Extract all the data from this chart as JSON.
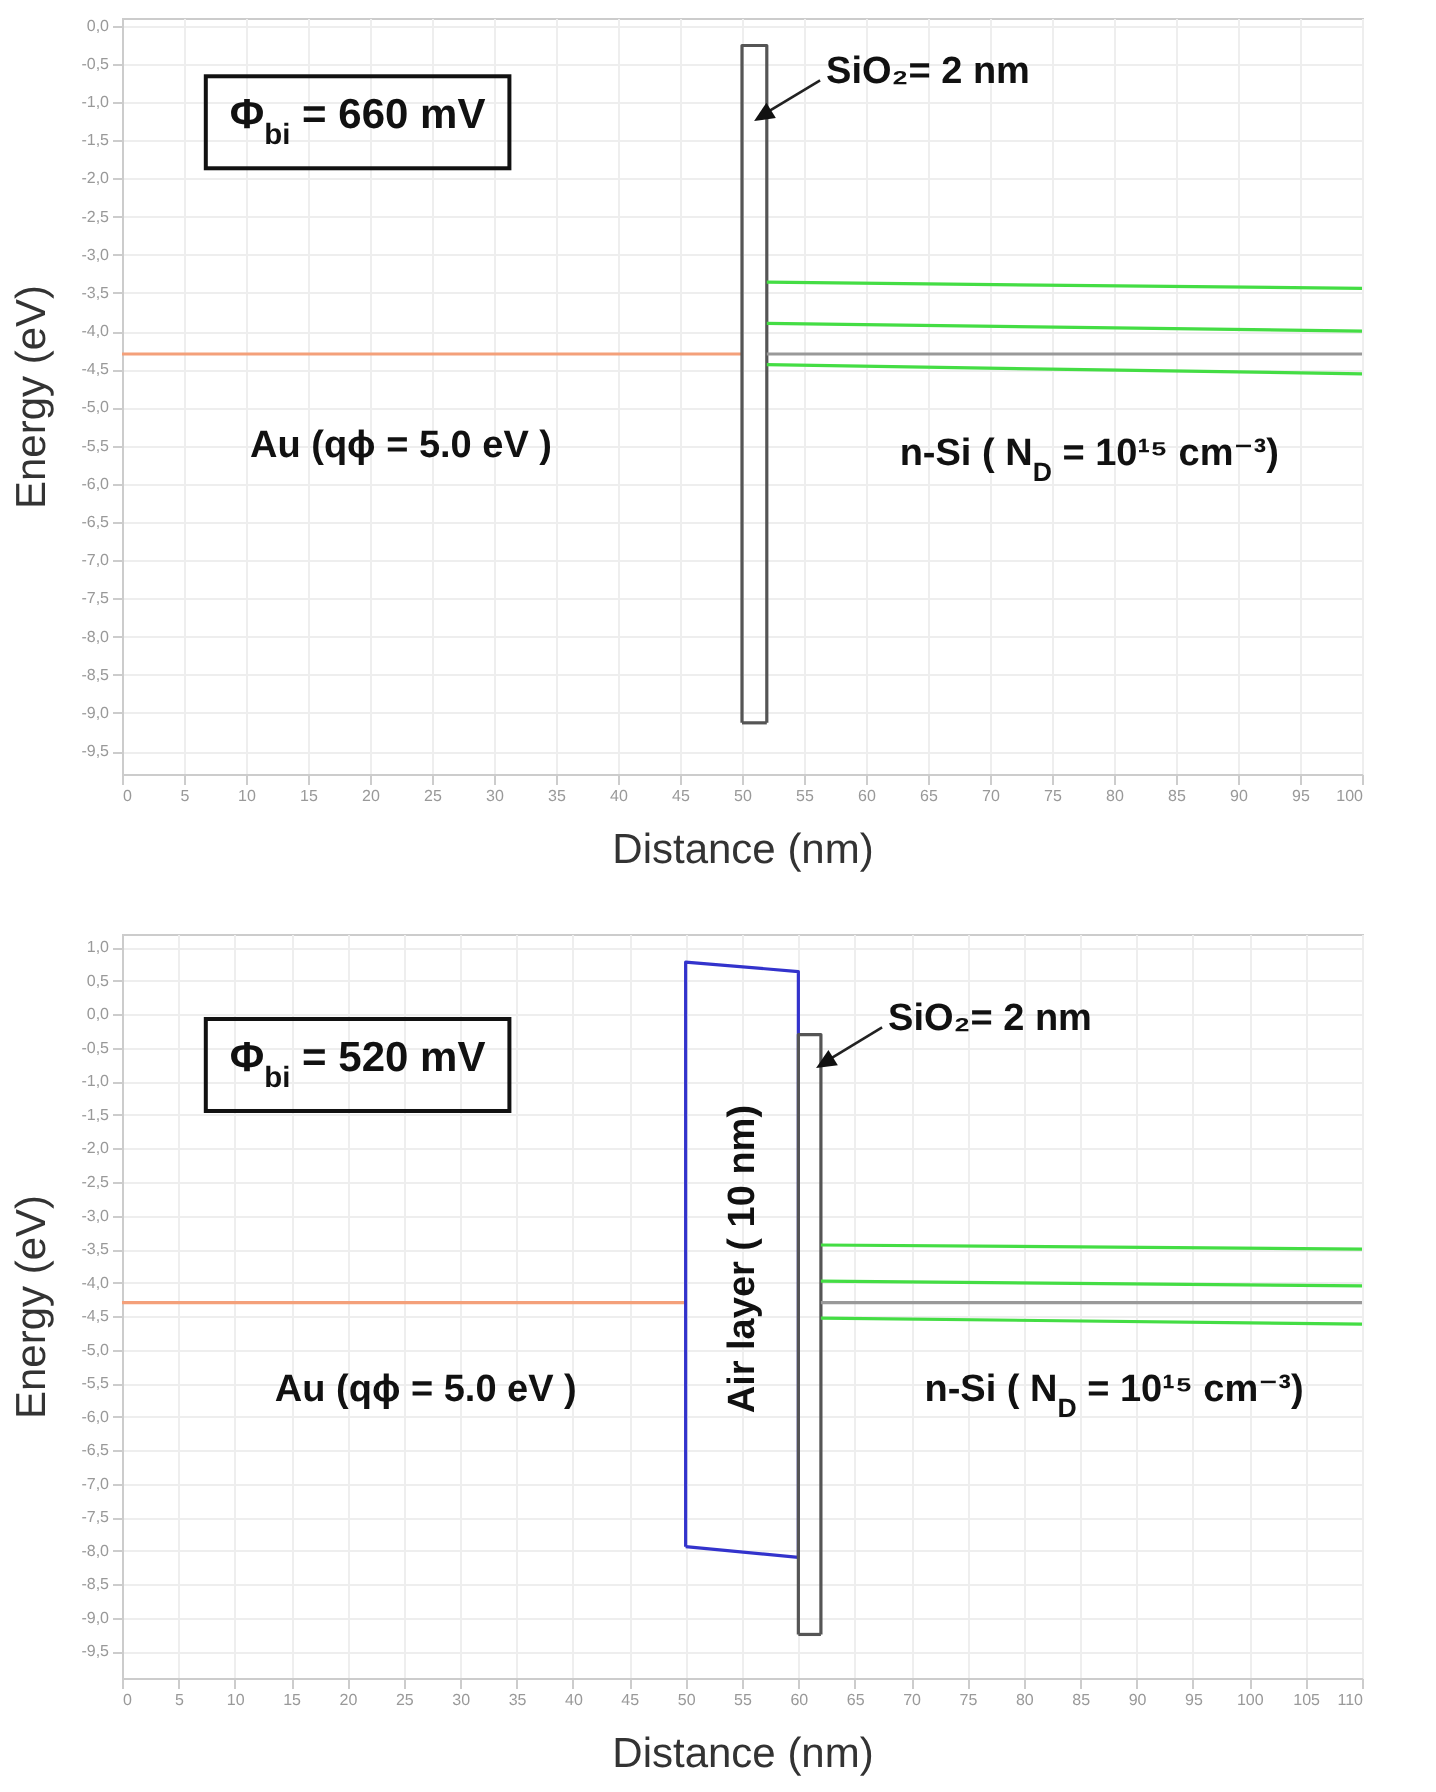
{
  "chart_data": [
    {
      "type": "line",
      "xlabel": "Distance (nm)",
      "ylabel": "Energy (eV)",
      "xlim": [
        0,
        100
      ],
      "ylim": [
        -9.8,
        0.1
      ],
      "grid": true,
      "xticks": [
        0,
        5,
        10,
        15,
        20,
        25,
        30,
        35,
        40,
        45,
        50,
        55,
        60,
        65,
        70,
        75,
        80,
        85,
        90,
        95,
        100
      ],
      "yticks": [
        {
          "value": 0,
          "label": "0,0"
        },
        {
          "value": -0.5,
          "label": "-0,5"
        },
        {
          "value": -1,
          "label": "-1,0"
        },
        {
          "value": -1.5,
          "label": "-1,5"
        },
        {
          "value": -2,
          "label": "-2,0"
        },
        {
          "value": -2.5,
          "label": "-2,5"
        },
        {
          "value": -3,
          "label": "-3,0"
        },
        {
          "value": -3.5,
          "label": "-3,5"
        },
        {
          "value": -4,
          "label": "-4,0"
        },
        {
          "value": -4.5,
          "label": "-4,5"
        },
        {
          "value": -5,
          "label": "-5,0"
        },
        {
          "value": -5.5,
          "label": "-5,5"
        },
        {
          "value": -6,
          "label": "-6,0"
        },
        {
          "value": -6.5,
          "label": "-6,5"
        },
        {
          "value": -7,
          "label": "-7,0"
        },
        {
          "value": -7.5,
          "label": "-7,5"
        },
        {
          "value": -8,
          "label": "-8,0"
        },
        {
          "value": -8.5,
          "label": "-8,5"
        },
        {
          "value": -9,
          "label": "-9,0"
        },
        {
          "value": -9.5,
          "label": "-9,5"
        }
      ],
      "series": [
        {
          "color": "#f4a07a",
          "x": [
            0,
            50
          ],
          "values": [
            -4.3,
            -4.3
          ]
        },
        {
          "color": "#555555",
          "x": [
            50,
            50,
            52,
            52
          ],
          "values": [
            -9.13,
            -0.26,
            -0.26,
            -9.13
          ]
        },
        {
          "color": "#555555",
          "x": [
            50,
            52
          ],
          "values": [
            -9.13,
            -9.13
          ]
        },
        {
          "color": "#44dd44",
          "x": [
            52,
            100
          ],
          "values": [
            -3.36,
            -3.44
          ]
        },
        {
          "color": "#44dd44",
          "x": [
            52,
            100
          ],
          "values": [
            -3.9,
            -4.0
          ]
        },
        {
          "color": "#999999",
          "x": [
            52,
            100
          ],
          "values": [
            -4.3,
            -4.3
          ]
        },
        {
          "color": "#44dd44",
          "x": [
            52,
            100
          ],
          "values": [
            -4.44,
            -4.56
          ]
        }
      ],
      "annotations": [
        "Φ$_{bi}$ = 660 mV",
        "SiO₂= 2 nm",
        "Au (qϕ = 5.0 eV )",
        "n-Si ( N$_{D}$ = 10¹⁵ cm⁻³)"
      ]
    },
    {
      "type": "line",
      "xlabel": "Distance (nm)",
      "ylabel": "Energy (eV)",
      "xlim": [
        0,
        110
      ],
      "ylim": [
        -9.9,
        1.2
      ],
      "grid": true,
      "xticks": [
        0,
        5,
        10,
        15,
        20,
        25,
        30,
        35,
        40,
        45,
        50,
        55,
        60,
        65,
        70,
        75,
        80,
        85,
        90,
        95,
        100,
        105,
        110
      ],
      "yticks": [
        {
          "value": 1,
          "label": "1,0"
        },
        {
          "value": 0.5,
          "label": "0,5"
        },
        {
          "value": 0,
          "label": "0,0"
        },
        {
          "value": -0.5,
          "label": "-0,5"
        },
        {
          "value": -1,
          "label": "-1,0"
        },
        {
          "value": -1.5,
          "label": "-1,5"
        },
        {
          "value": -2,
          "label": "-2,0"
        },
        {
          "value": -2.5,
          "label": "-2,5"
        },
        {
          "value": -3,
          "label": "-3,0"
        },
        {
          "value": -3.5,
          "label": "-3,5"
        },
        {
          "value": -4,
          "label": "-4,0"
        },
        {
          "value": -4.5,
          "label": "-4,5"
        },
        {
          "value": -5,
          "label": "-5,0"
        },
        {
          "value": -5.5,
          "label": "-5,5"
        },
        {
          "value": -6,
          "label": "-6,0"
        },
        {
          "value": -6.5,
          "label": "-6,5"
        },
        {
          "value": -7,
          "label": "-7,0"
        },
        {
          "value": -7.5,
          "label": "-7,5"
        },
        {
          "value": -8,
          "label": "-8,0"
        },
        {
          "value": -8.5,
          "label": "-8,5"
        },
        {
          "value": -9,
          "label": "-9,0"
        },
        {
          "value": -9.5,
          "label": "-9,5"
        }
      ],
      "series": [
        {
          "color": "#f4a07a",
          "x": [
            0,
            50
          ],
          "values": [
            -4.3,
            -4.3
          ]
        },
        {
          "color": "#3333cc",
          "x": [
            50,
            50,
            60,
            60
          ],
          "values": [
            -7.94,
            0.78,
            0.64,
            -8.1
          ]
        },
        {
          "color": "#3333cc",
          "x": [
            50,
            60
          ],
          "values": [
            -7.94,
            -8.1
          ]
        },
        {
          "color": "#555555",
          "x": [
            60,
            60,
            62,
            62
          ],
          "values": [
            -9.25,
            -0.3,
            -0.3,
            -9.25
          ]
        },
        {
          "color": "#555555",
          "x": [
            60,
            62
          ],
          "values": [
            -9.25,
            -9.25
          ]
        },
        {
          "color": "#44dd44",
          "x": [
            62,
            110
          ],
          "values": [
            -3.44,
            -3.5
          ]
        },
        {
          "color": "#44dd44",
          "x": [
            62,
            110
          ],
          "values": [
            -3.98,
            -4.05
          ]
        },
        {
          "color": "#999999",
          "x": [
            62,
            110
          ],
          "values": [
            -4.3,
            -4.3
          ]
        },
        {
          "color": "#44dd44",
          "x": [
            62,
            110
          ],
          "values": [
            -4.53,
            -4.62
          ]
        }
      ],
      "annotations": [
        "Φ$_{bi}$ = 520 mV",
        "SiO₂= 2 nm",
        "Au (qϕ = 5.0 eV )",
        "Air layer ( 10 nm)",
        "n-Si ( N$_{D}$ = 10¹⁵ cm⁻³)"
      ]
    }
  ]
}
